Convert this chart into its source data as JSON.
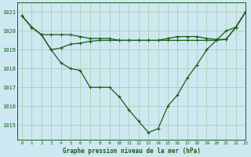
{
  "title": "Graphe pression niveau de la mer (hPa)",
  "bg_color": "#cde8f0",
  "grid_color": "#a8c8a8",
  "line_color": "#1a5c1a",
  "xlim": [
    -0.5,
    23
  ],
  "ylim": [
    1014.2,
    1021.5
  ],
  "yticks": [
    1015,
    1016,
    1017,
    1018,
    1019,
    1020,
    1021
  ],
  "xticks": [
    0,
    1,
    2,
    3,
    4,
    5,
    6,
    7,
    8,
    9,
    10,
    11,
    12,
    13,
    14,
    15,
    16,
    17,
    18,
    19,
    20,
    21,
    22,
    23
  ],
  "series1_y": [
    1020.8,
    1020.2,
    1019.8,
    1019.0,
    1018.3,
    1018.0,
    1017.9,
    1017.0,
    1017.0,
    1017.0,
    1016.5,
    1015.8,
    1015.2,
    1014.6,
    1014.8,
    1016.0,
    1016.6,
    1017.5,
    1018.2,
    1019.0,
    1019.5,
    1020.0,
    1020.2,
    1021.0
  ],
  "series2_y": [
    1020.8,
    1020.2,
    1019.8,
    1019.8,
    1019.8,
    1019.8,
    1019.7,
    1019.6,
    1019.6,
    1019.6,
    1019.5,
    1019.5,
    1019.5,
    1019.5,
    1019.5,
    1019.6,
    1019.7,
    1019.7,
    1019.7,
    1019.6,
    1019.55,
    1019.55,
    1020.2,
    1021.0
  ],
  "series3_y": [
    1020.8,
    1020.2,
    1019.8,
    1019.0,
    1019.1,
    1019.3,
    1019.35,
    1019.45,
    1019.5,
    1019.5,
    1019.5,
    1019.5,
    1019.5,
    1019.5,
    1019.5,
    1019.5,
    1019.5,
    1019.5,
    1019.5,
    1019.5,
    1019.5,
    1019.55,
    1020.2,
    1021.0
  ]
}
